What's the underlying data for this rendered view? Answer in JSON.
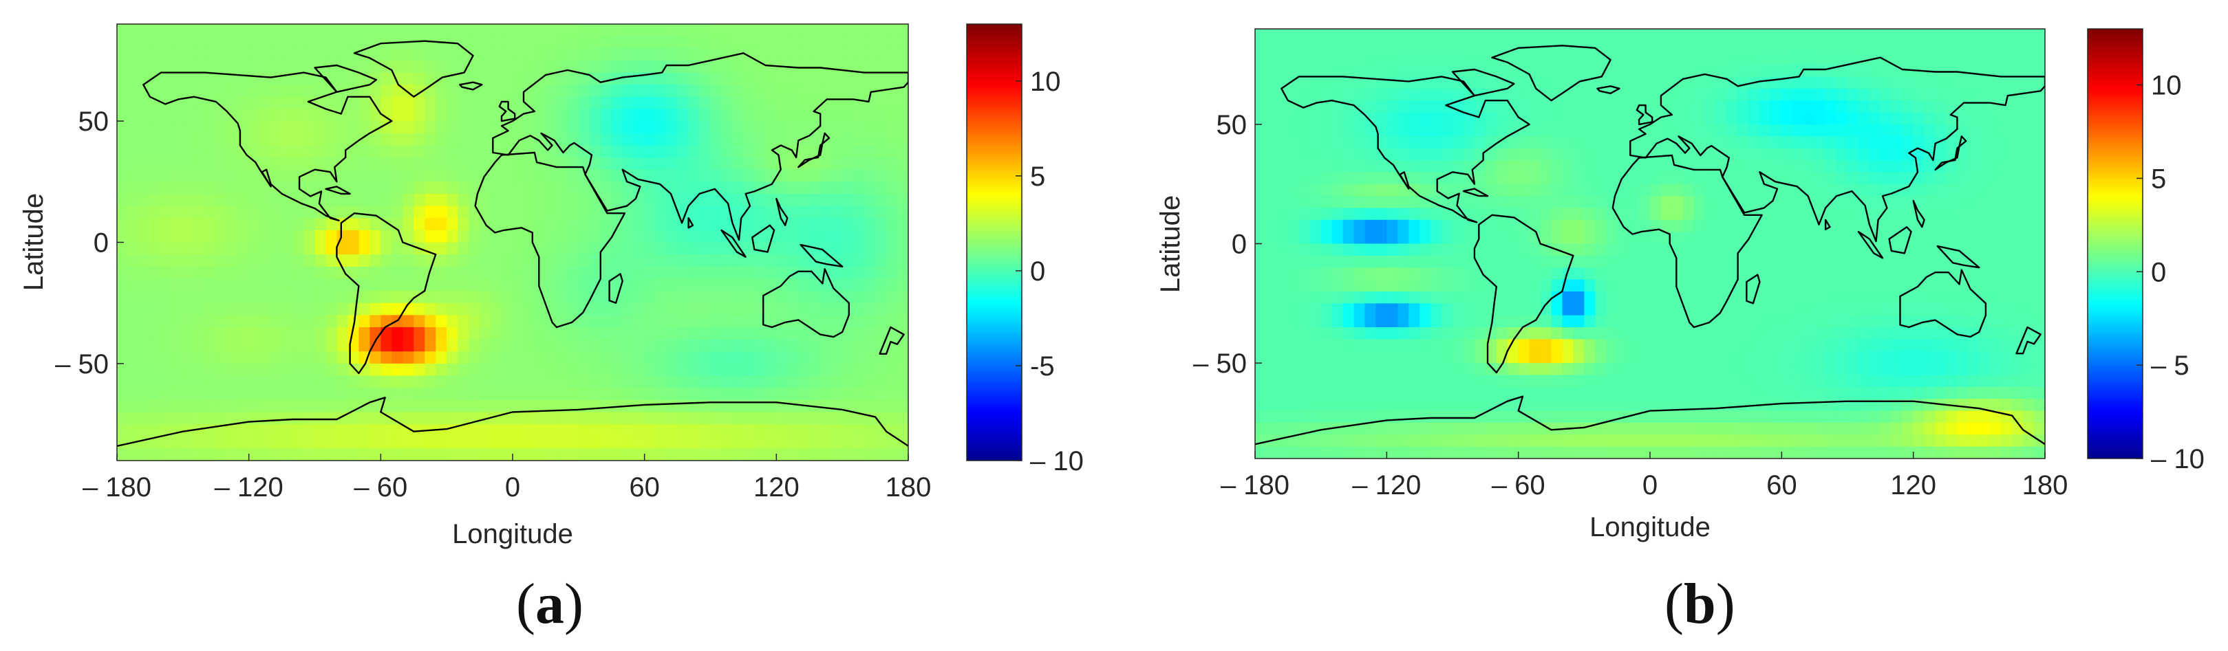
{
  "colormap": "jet",
  "coastline_color": "#000000",
  "panels": [
    {
      "caption_letter": "a",
      "chart_data": {
        "type": "heatmap",
        "xlabel": "Longitude",
        "ylabel": "Latitude",
        "xlim": [
          -180,
          180
        ],
        "ylim": [
          -90,
          90
        ],
        "xticks": [
          -180,
          -120,
          -60,
          0,
          60,
          120,
          180
        ],
        "xtick_labels": [
          "– 180",
          "– 120",
          "– 60",
          "0",
          "60",
          "120",
          "180"
        ],
        "yticks": [
          50,
          0,
          -50
        ],
        "ytick_labels": [
          "50",
          "0",
          "– 50"
        ],
        "colorbar": {
          "range": [
            -10,
            13
          ],
          "ticks": [
            10,
            5,
            0,
            -5,
            -10
          ],
          "tick_labels": [
            "10",
            "5",
            "0",
            "-5",
            "– 10"
          ]
        },
        "background_value": 1.8,
        "features": [
          {
            "lon": -52,
            "lat": -40,
            "value": 10.5,
            "lon_radius": 20,
            "lat_radius": 11
          },
          {
            "lon": -75,
            "lat": 0,
            "value": 6.0,
            "lon_radius": 14,
            "lat_radius": 8
          },
          {
            "lon": -35,
            "lat": 8,
            "value": 5.0,
            "lon_radius": 12,
            "lat_radius": 12
          },
          {
            "lon": -20,
            "lat": -30,
            "value": 2.5,
            "lon_radius": 15,
            "lat_radius": 10
          },
          {
            "lon": -150,
            "lat": 5,
            "value": 2.6,
            "lon_radius": 30,
            "lat_radius": 15
          },
          {
            "lon": -120,
            "lat": -40,
            "value": 2.3,
            "lon_radius": 25,
            "lat_radius": 12
          },
          {
            "lon": -50,
            "lat": 55,
            "value": 3.5,
            "lon_radius": 14,
            "lat_radius": 15
          },
          {
            "lon": 0,
            "lat": -80,
            "value": 3.5,
            "lon_radius": 180,
            "lat_radius": 10
          },
          {
            "lon": 60,
            "lat": 50,
            "value": -1.0,
            "lon_radius": 30,
            "lat_radius": 20
          },
          {
            "lon": 90,
            "lat": 10,
            "value": 0.0,
            "lon_radius": 40,
            "lat_radius": 25
          },
          {
            "lon": 150,
            "lat": 0,
            "value": 0.3,
            "lon_radius": 30,
            "lat_radius": 30
          },
          {
            "lon": 100,
            "lat": -50,
            "value": 0.5,
            "lon_radius": 40,
            "lat_radius": 15
          },
          {
            "lon": 130,
            "lat": 30,
            "value": 2.5,
            "lon_radius": 20,
            "lat_radius": 10
          },
          {
            "lon": -100,
            "lat": 45,
            "value": 2.5,
            "lon_radius": 25,
            "lat_radius": 15
          },
          {
            "lon": 40,
            "lat": -20,
            "value": 1.0,
            "lon_radius": 25,
            "lat_radius": 20
          }
        ]
      }
    },
    {
      "caption_letter": "b",
      "chart_data": {
        "type": "heatmap",
        "xlabel": "Longitude",
        "ylabel": "Latitude",
        "xlim": [
          -180,
          180
        ],
        "ylim": [
          -90,
          90
        ],
        "xticks": [
          -180,
          -120,
          -60,
          0,
          60,
          120,
          180
        ],
        "xtick_labels": [
          "– 180",
          "– 120",
          "– 60",
          "0",
          "60",
          "120",
          "180"
        ],
        "yticks": [
          50,
          0,
          -50
        ],
        "ytick_labels": [
          "50",
          "0",
          "– 50"
        ],
        "colorbar": {
          "range": [
            -10,
            13
          ],
          "ticks": [
            10,
            5,
            0,
            -5,
            -10
          ],
          "tick_labels": [
            "10",
            "5",
            "0",
            "– 5",
            "– 10"
          ]
        },
        "background_value": 0.5,
        "features": [
          {
            "lon": -125,
            "lat": 5,
            "value": -4.5,
            "lon_radius": 22,
            "lat_radius": 6
          },
          {
            "lon": -120,
            "lat": -30,
            "value": -4.5,
            "lon_radius": 18,
            "lat_radius": 6
          },
          {
            "lon": -35,
            "lat": -25,
            "value": -4.5,
            "lon_radius": 8,
            "lat_radius": 9
          },
          {
            "lon": -50,
            "lat": -45,
            "value": 6.0,
            "lon_radius": 20,
            "lat_radius": 7
          },
          {
            "lon": -120,
            "lat": -15,
            "value": 1.6,
            "lon_radius": 25,
            "lat_radius": 5
          },
          {
            "lon": -120,
            "lat": 22,
            "value": 1.5,
            "lon_radius": 25,
            "lat_radius": 6
          },
          {
            "lon": -35,
            "lat": 5,
            "value": 1.8,
            "lon_radius": 15,
            "lat_radius": 10
          },
          {
            "lon": 10,
            "lat": 15,
            "value": 2.0,
            "lon_radius": 10,
            "lat_radius": 8
          },
          {
            "lon": 150,
            "lat": -75,
            "value": 4.0,
            "lon_radius": 30,
            "lat_radius": 10
          },
          {
            "lon": 0,
            "lat": -82,
            "value": 2.2,
            "lon_radius": 180,
            "lat_radius": 8
          },
          {
            "lon": 70,
            "lat": 55,
            "value": -1.6,
            "lon_radius": 30,
            "lat_radius": 12
          },
          {
            "lon": 110,
            "lat": 40,
            "value": -1.0,
            "lon_radius": 25,
            "lat_radius": 15
          },
          {
            "lon": -100,
            "lat": 50,
            "value": -0.8,
            "lon_radius": 30,
            "lat_radius": 15
          },
          {
            "lon": -60,
            "lat": 30,
            "value": 1.5,
            "lon_radius": 20,
            "lat_radius": 12
          },
          {
            "lon": 120,
            "lat": -50,
            "value": -0.6,
            "lon_radius": 40,
            "lat_radius": 15
          }
        ]
      }
    }
  ]
}
